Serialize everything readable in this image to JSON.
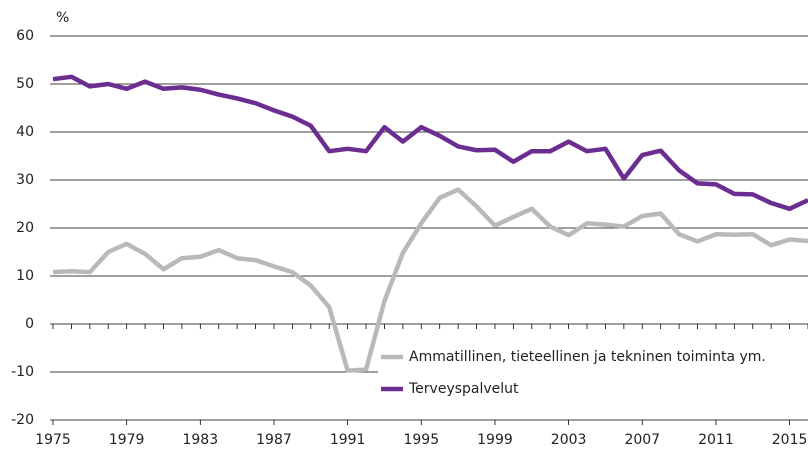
{
  "chart_data": {
    "type": "line",
    "y_label": "%",
    "x": [
      1975,
      1976,
      1977,
      1978,
      1979,
      1980,
      1981,
      1982,
      1983,
      1984,
      1985,
      1986,
      1987,
      1988,
      1989,
      1990,
      1991,
      1992,
      1993,
      1994,
      1995,
      1996,
      1997,
      1998,
      1999,
      2000,
      2001,
      2002,
      2003,
      2004,
      2005,
      2006,
      2007,
      2008,
      2009,
      2010,
      2011,
      2012,
      2013,
      2014,
      2015,
      2016
    ],
    "series": [
      {
        "name": "Ammatillinen, tieteellinen ja tekninen toiminta ym.",
        "color": "#b9b9b9",
        "values": [
          10.8,
          11,
          10.8,
          15,
          16.7,
          14.6,
          11.4,
          13.7,
          14,
          15.4,
          13.7,
          13.3,
          12,
          10.8,
          8,
          3.5,
          -9.7,
          -9.5,
          4.8,
          14.8,
          21,
          26.3,
          28,
          24.5,
          20.5,
          22.3,
          24,
          20.3,
          18.5,
          21,
          20.7,
          20.3,
          22.5,
          23,
          18.7,
          17.2,
          18.7,
          18.6,
          18.7,
          16.4,
          17.6,
          17.3
        ]
      },
      {
        "name": "Terveyspalvelut",
        "color": "#6b2d8f",
        "values": [
          51,
          51.5,
          49.5,
          50,
          49,
          50.5,
          49,
          49.3,
          48.8,
          47.8,
          47,
          46,
          44.5,
          43.2,
          41.3,
          36,
          36.5,
          36,
          41,
          38,
          41,
          39.2,
          37,
          36.2,
          36.3,
          33.8,
          36,
          36,
          38,
          36,
          36.5,
          30.3,
          35.2,
          36.1,
          32,
          29.3,
          29.1,
          27.1,
          27,
          25.2,
          24,
          25.8
        ]
      }
    ],
    "xlim": [
      1975,
      2016
    ],
    "xticks": [
      1975,
      1979,
      1983,
      1987,
      1991,
      1995,
      1999,
      2003,
      2007,
      2011,
      2015
    ],
    "ylim": [
      -20,
      60
    ],
    "yticks": [
      -20,
      -10,
      0,
      10,
      20,
      30,
      40,
      50,
      60
    ],
    "grid": true
  }
}
